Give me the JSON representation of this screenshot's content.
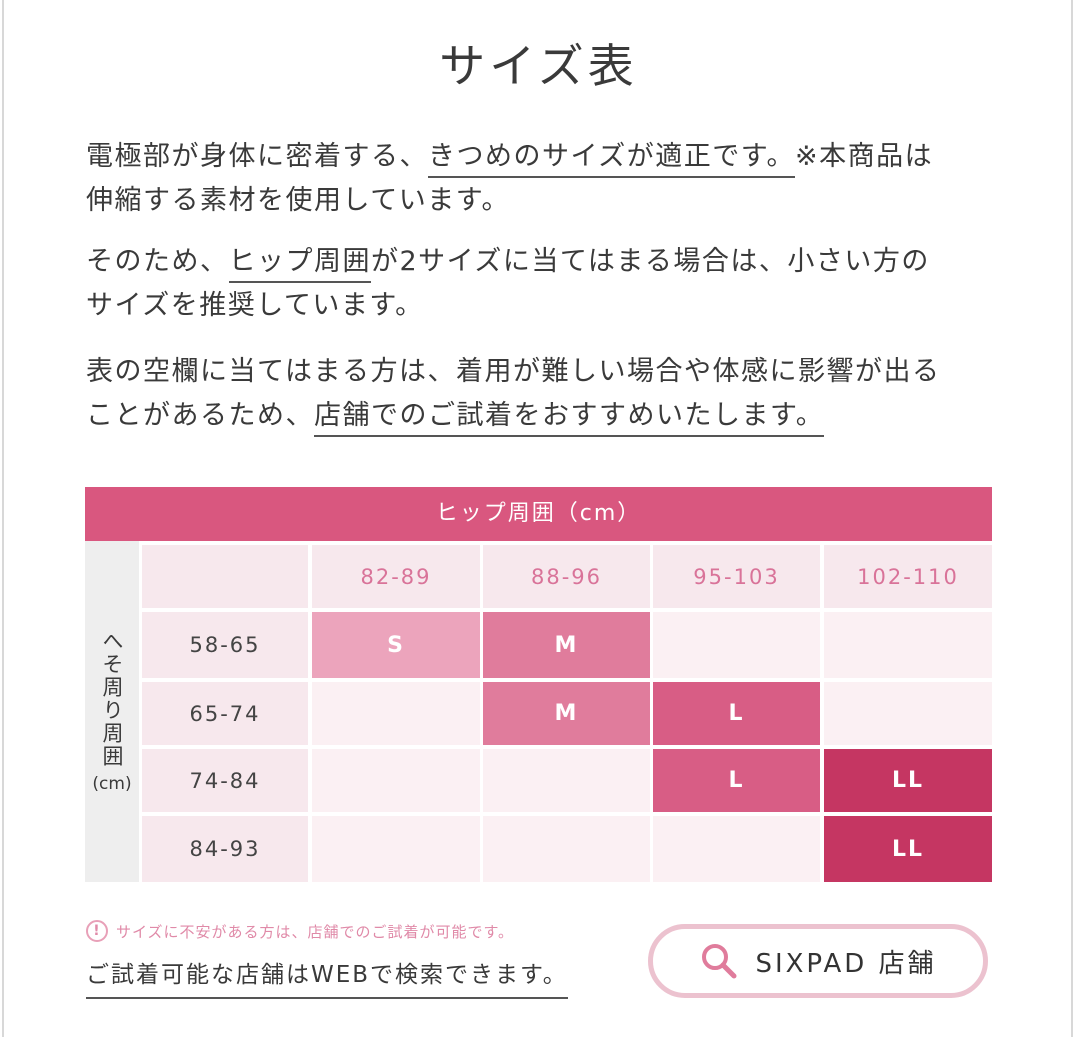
{
  "header": {
    "title": "サイズ表"
  },
  "paragraphs": [
    [
      [
        {
          "text": "電極部が身体に密着する、",
          "underline": false
        },
        {
          "text": "きつめのサイズが適正です。",
          "underline": true
        },
        {
          "text": "※本商品は",
          "underline": false
        }
      ],
      [
        {
          "text": "伸縮する素材を使用しています。",
          "underline": false
        }
      ]
    ],
    [
      [
        {
          "text": "そのため、",
          "underline": false
        },
        {
          "text": "ヒップ周囲",
          "underline": true
        },
        {
          "text": "が2サイズに当てはまる場合は、小さい方の",
          "underline": false
        }
      ],
      [
        {
          "text": "サイズを推奨しています。",
          "underline": false
        }
      ]
    ],
    [
      [
        {
          "text": "表の空欄に当てはまる方は、着用が難しい場合や体感に影響が出る",
          "underline": false
        }
      ],
      [
        {
          "text": "ことがあるため、",
          "underline": false
        },
        {
          "text": "店舗でのご試着をおすすめいたします。",
          "underline": true
        }
      ]
    ]
  ],
  "table": {
    "column_group": "ヒップ周囲（cm）",
    "row_group": "へそ周り周囲",
    "row_group_unit": "(cm)",
    "columns": [
      "82-89",
      "88-96",
      "95-103",
      "102-110"
    ],
    "rows": [
      {
        "label": "58-65",
        "cells": [
          "S",
          "M",
          null,
          null
        ]
      },
      {
        "label": "65-74",
        "cells": [
          null,
          "M",
          "L",
          null
        ]
      },
      {
        "label": "74-84",
        "cells": [
          null,
          null,
          "L",
          "LL"
        ]
      },
      {
        "label": "84-93",
        "cells": [
          null,
          null,
          null,
          "LL"
        ]
      }
    ],
    "cell_colors": {
      "S": "#eca4bc",
      "M": "#e07c9c",
      "L": "#d85d85",
      "LL": "#c53662"
    }
  },
  "footer": {
    "note": "サイズに不安がある方は、店舗でのご試着が可能です。",
    "note_link": "ご試着可能な店舗はWEBで検索できます。",
    "button": "SIXPAD 店舗"
  }
}
